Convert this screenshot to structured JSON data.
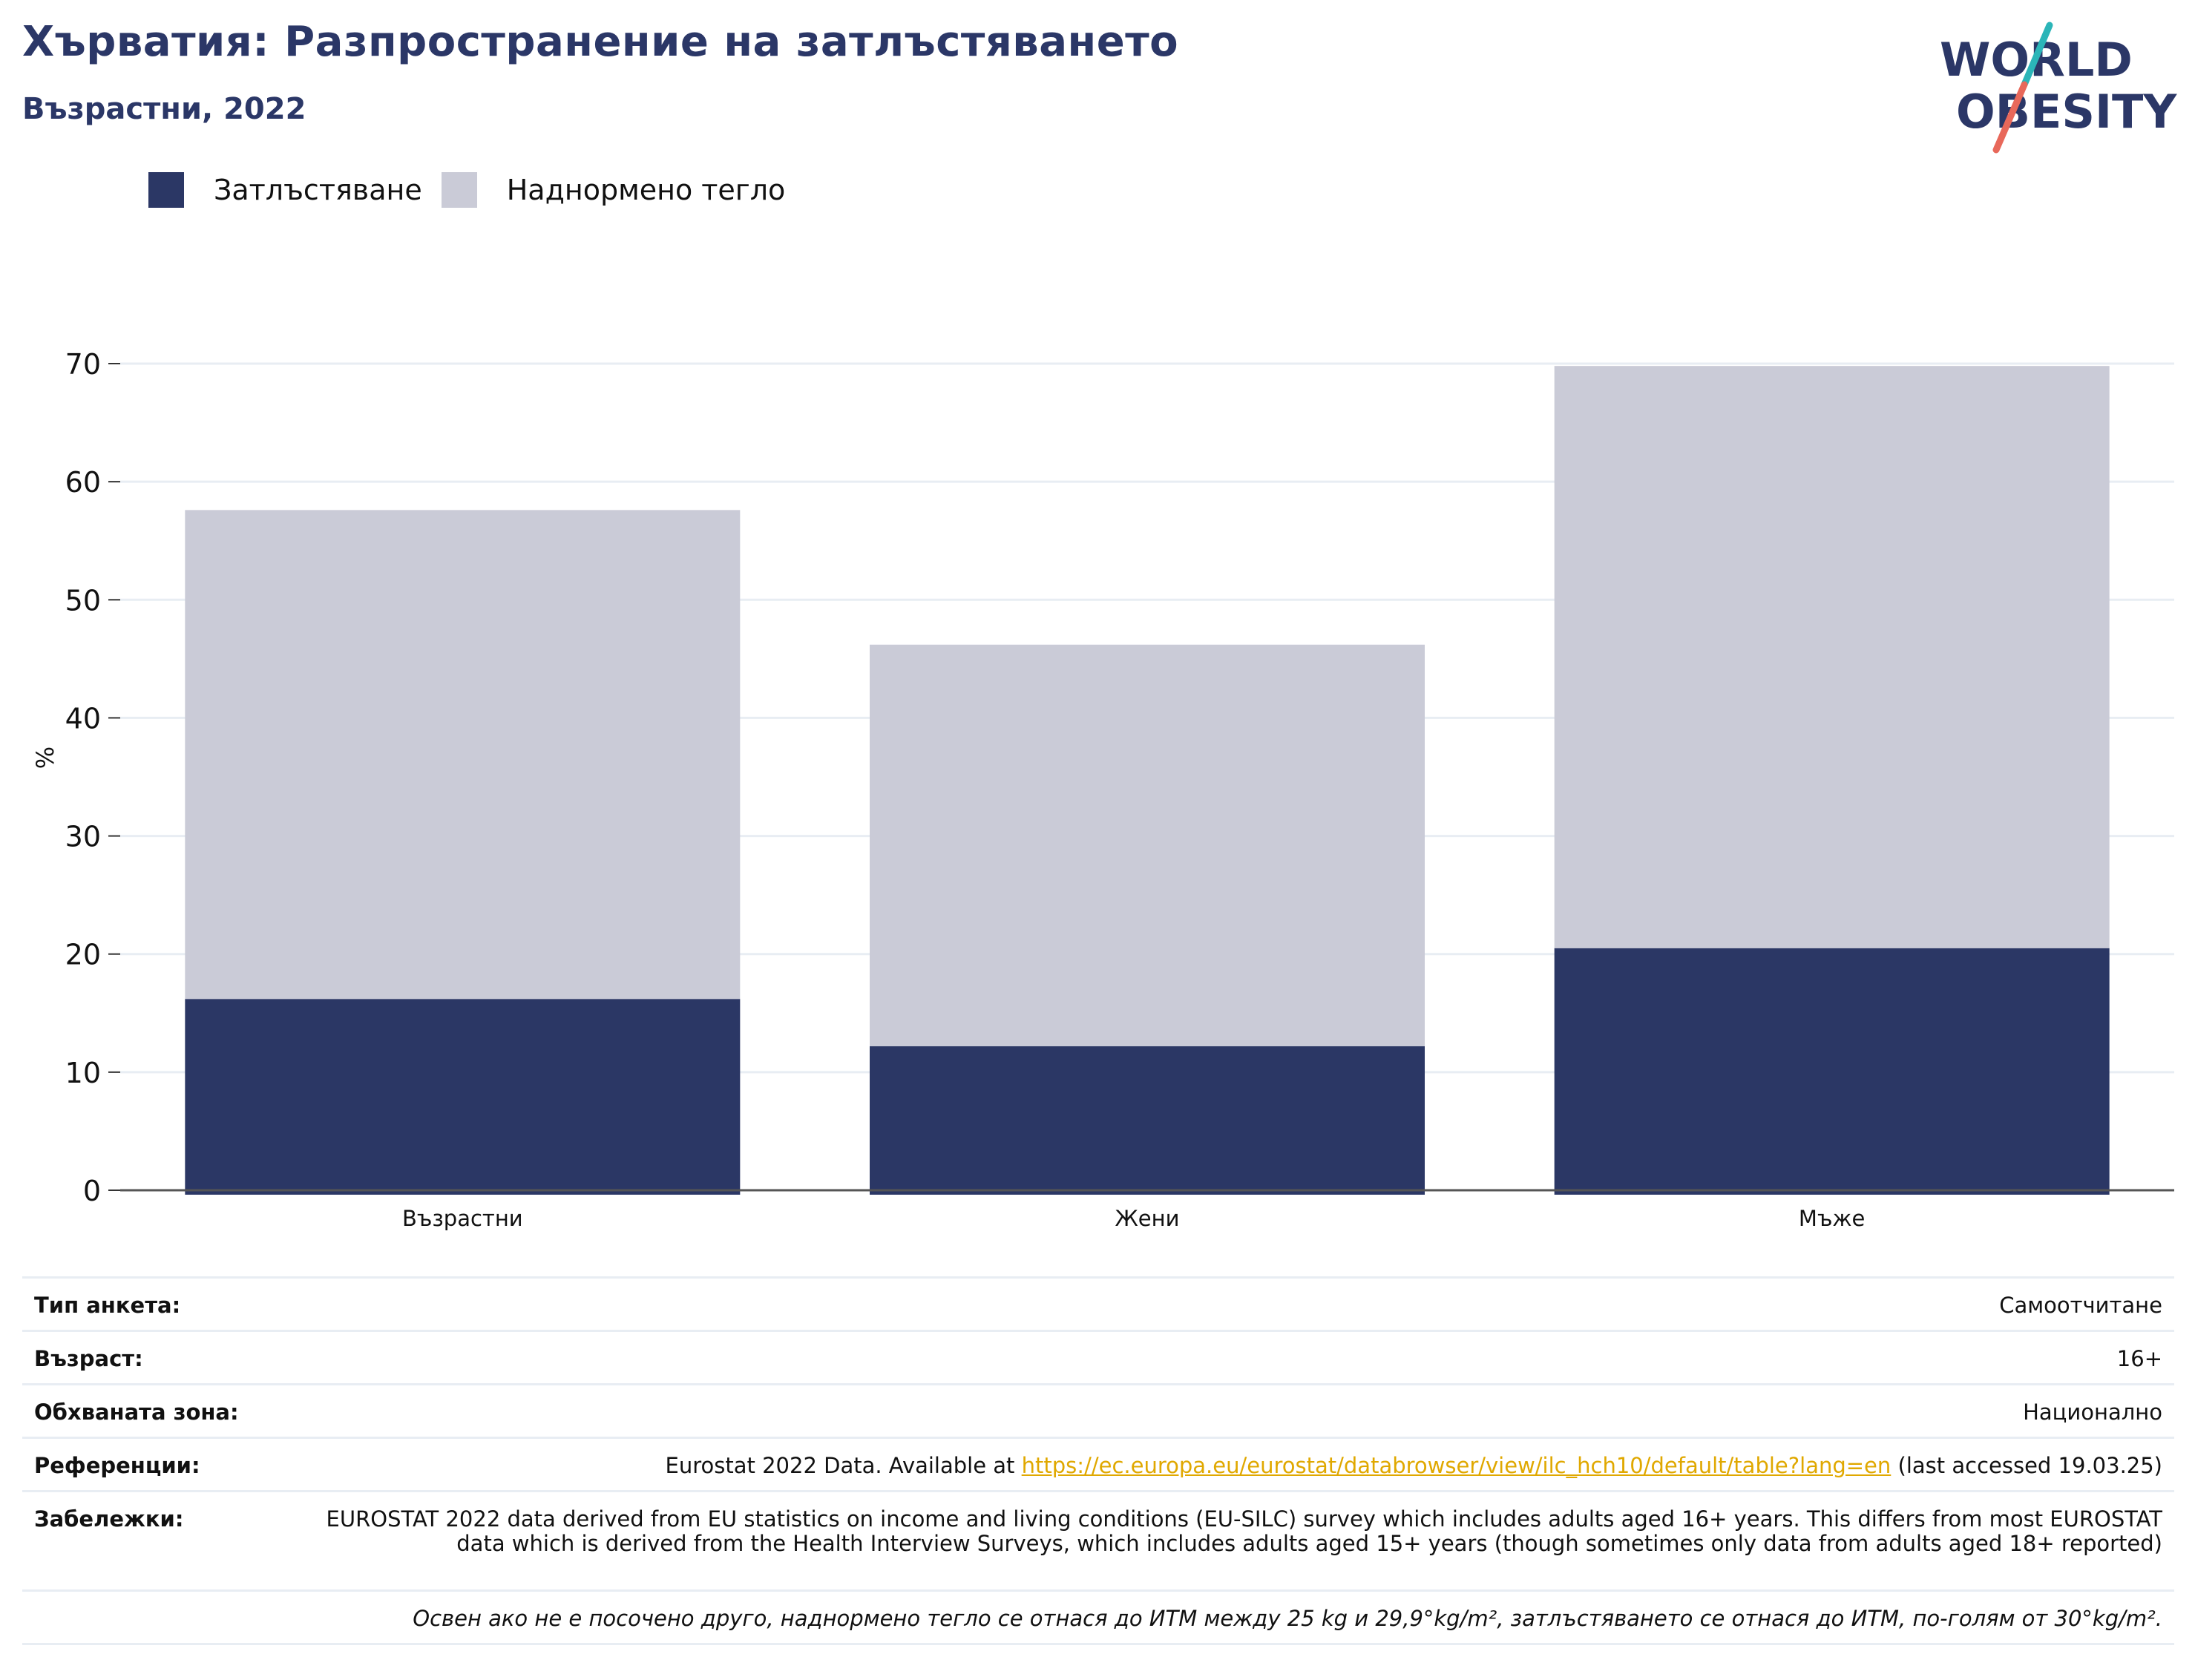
{
  "header": {
    "title": "Хърватия: Разпространение на затлъстяването",
    "subtitle": "Възрастни, 2022"
  },
  "logo": {
    "line1": "WORLD",
    "line2": "OBESITY",
    "colors": {
      "text": "#2b3767",
      "slash_top": "#2bb5b8",
      "slash_bottom": "#e8685a"
    }
  },
  "chart_data": {
    "type": "bar",
    "stacked": true,
    "categories": [
      "Възрастни",
      "Жени",
      "Мъже"
    ],
    "series": [
      {
        "name": "Затлъстяване",
        "color": "#2b3765",
        "values": [
          16.2,
          12.2,
          20.5
        ]
      },
      {
        "name": "Наднормено тегло",
        "color": "#cacbd7",
        "values": [
          41.4,
          34.0,
          49.3
        ]
      }
    ],
    "totals": [
      57.6,
      46.2,
      69.8
    ],
    "ylabel": "%",
    "ylim": [
      0,
      70
    ],
    "yticks": [
      0,
      10,
      20,
      30,
      40,
      50,
      60,
      70
    ],
    "grid": true,
    "legend_position": "top-left"
  },
  "info": {
    "survey_type": {
      "label": "Тип анкета:",
      "value": "Самоотчитане"
    },
    "age": {
      "label": "Възраст:",
      "value": "16+"
    },
    "coverage": {
      "label": "Обхваната зона:",
      "value": "Национално"
    },
    "references": {
      "label": "Референции:",
      "prefix": "Eurostat 2022 Data. Available at ",
      "link": "https://ec.europa.eu/eurostat/databrowser/view/ilc_hch10/default/table?lang=en",
      "suffix": " (last accessed 19.03.25)"
    },
    "notes": {
      "label": "Забележки:",
      "value": "EUROSTAT 2022 data derived from EU statistics on income and living conditions (EU-SILC) survey which includes adults aged 16+ years. This differs from most EUROSTAT data which is derived from the Health Interview Surveys, which includes adults aged 15+ years (though sometimes only data from adults aged 18+ reported)"
    },
    "footnote": "Освен ако не е посочено друго, наднормено тегло се отнася до ИТМ между 25 kg и 29,9°kg/m², затлъстяването се отнася до ИТМ, по-голям от 30°kg/m²."
  }
}
